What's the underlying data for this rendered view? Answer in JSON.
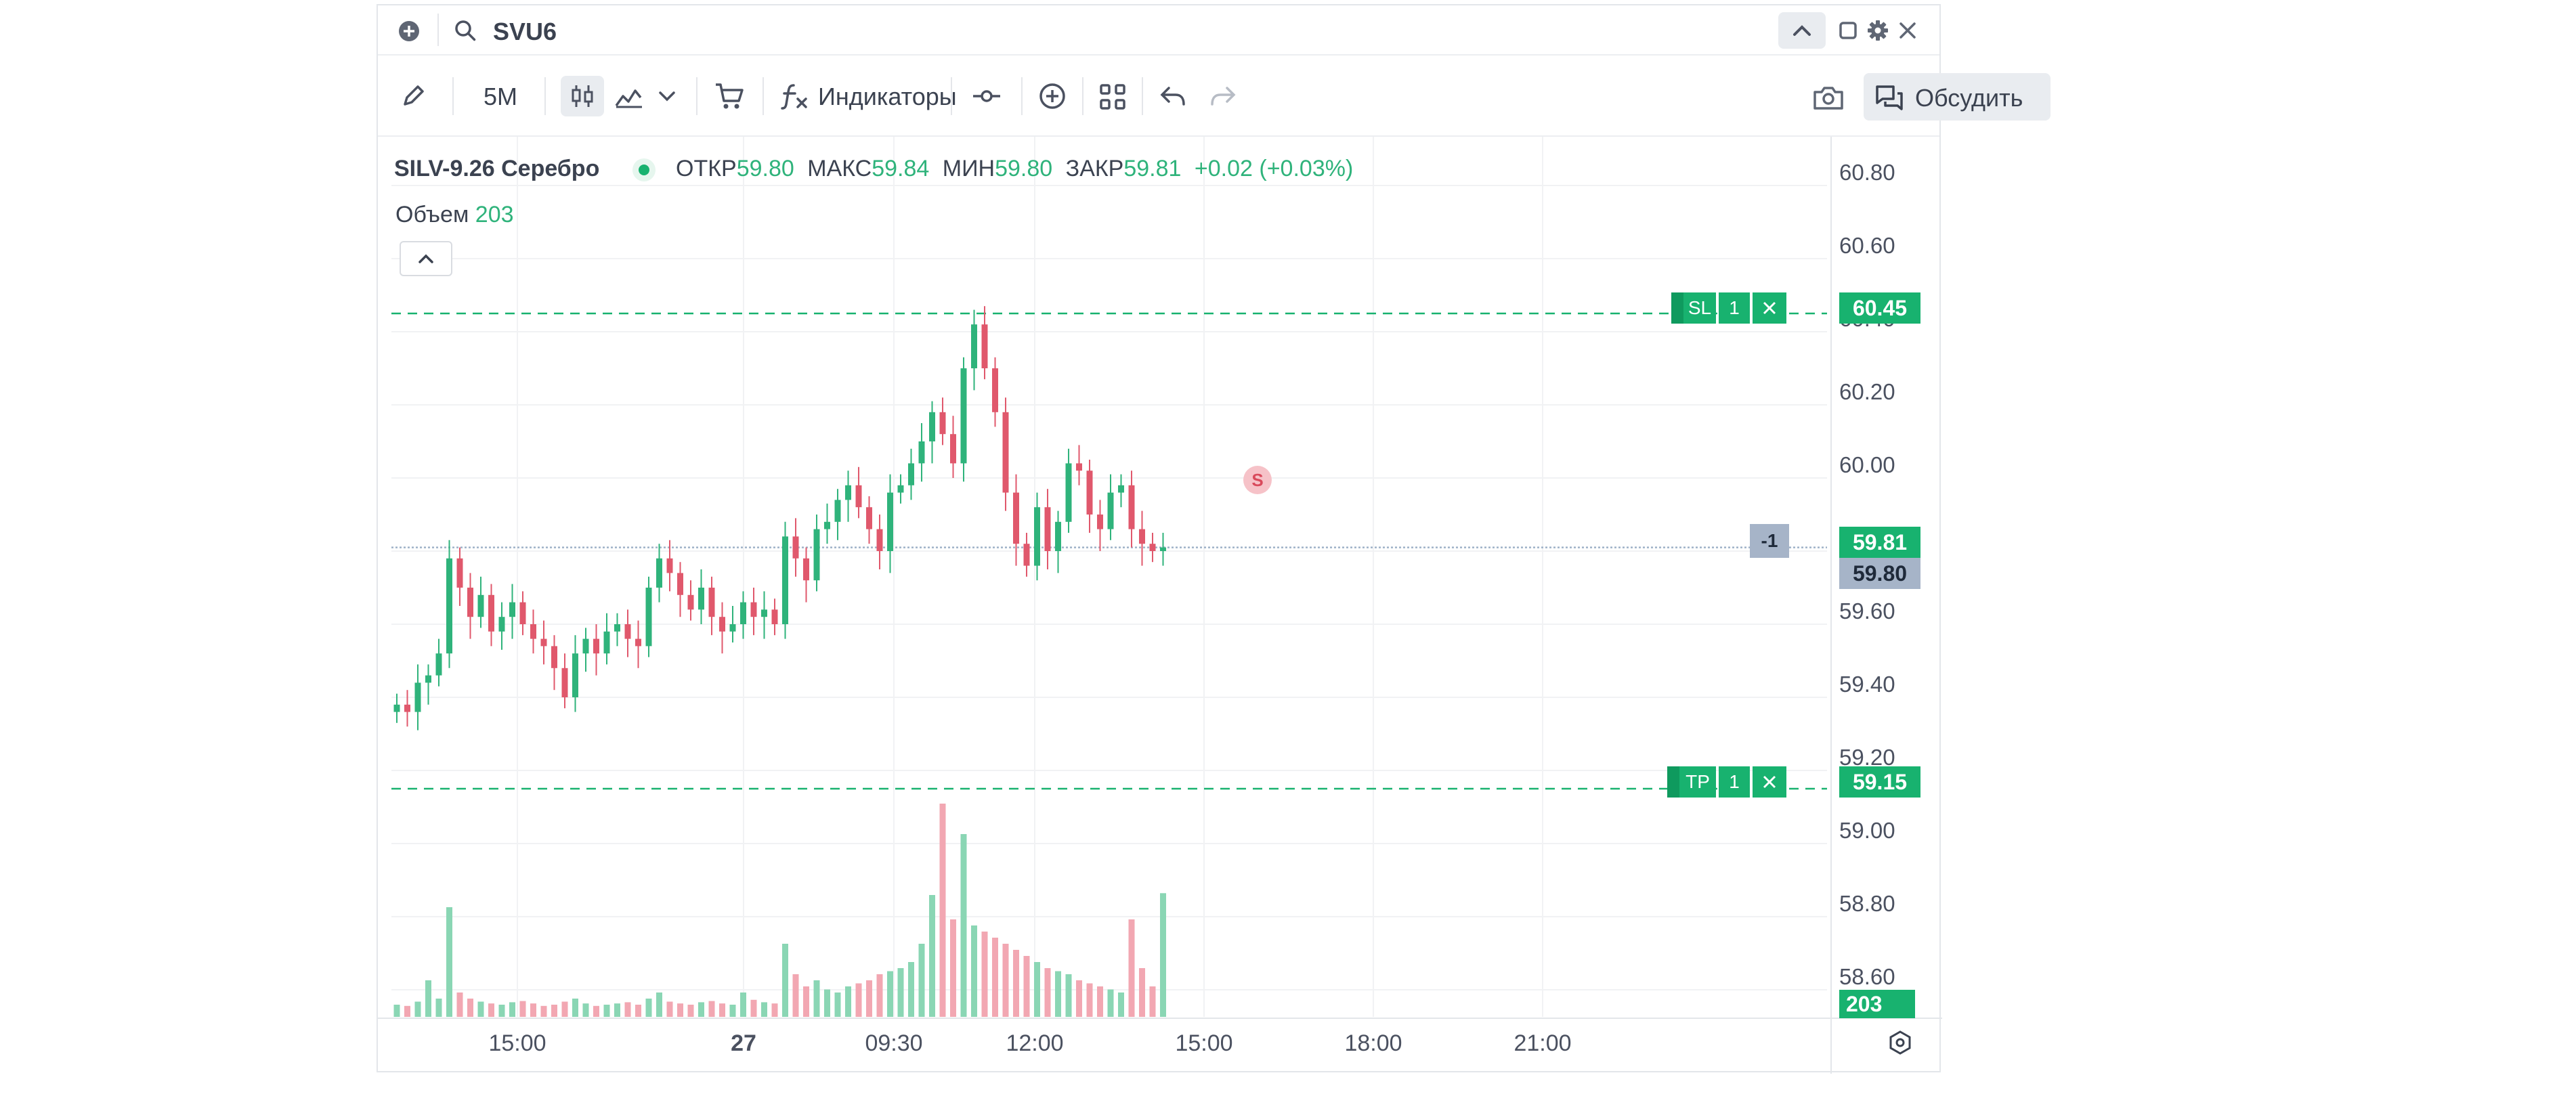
{
  "header": {
    "symbol": "SVU6"
  },
  "toolbar": {
    "timeframe": "5M",
    "indicators_label": "Индикаторы",
    "discuss_label": "Обсудить"
  },
  "legend": {
    "instrument": "SILV-9.26 Серебро",
    "open_label": "ОТКР",
    "open_value": "59.80",
    "high_label": "МАКС",
    "high_value": "59.84",
    "low_label": "МИН",
    "low_value": "59.80",
    "close_label": "ЗАКР",
    "close_value": "59.81",
    "change": "+0.02 (+0.03%)",
    "volume_label": "Объем",
    "volume_value": "203"
  },
  "price_axis": [
    "60.80",
    "60.60",
    "60.40",
    "60.20",
    "60.00",
    "59.60",
    "59.40",
    "59.20",
    "59.00",
    "58.80",
    "58.60"
  ],
  "time_axis": [
    "15:00",
    "27",
    "09:30",
    "12:00",
    "15:00",
    "18:00",
    "21:00"
  ],
  "orders": {
    "stop_loss": {
      "label": "SL",
      "qty": "1",
      "price": "60.45"
    },
    "take_profit": {
      "label": "TP",
      "qty": "1",
      "price": "59.15"
    },
    "position": {
      "qty": "-1"
    }
  },
  "current_price": "59.81",
  "last_price": "59.80",
  "volume_current": "203",
  "signal_marker": "S",
  "colors": {
    "up": "#2fb37b",
    "down": "#e0586c",
    "order_green": "#18b26f",
    "position_gray": "#a6b4c8"
  },
  "chart_data": {
    "type": "candlestick",
    "title": "SILV-9.26 Серебро",
    "interval": "5M",
    "ylim": [
      58.5,
      60.9
    ],
    "x_ticks": [
      "15:00",
      "27",
      "09:30",
      "12:00",
      "15:00",
      "18:00",
      "21:00"
    ],
    "y_ticks": [
      58.6,
      58.8,
      59.0,
      59.2,
      59.4,
      59.6,
      59.8,
      60.0,
      60.2,
      60.4,
      60.6,
      60.8
    ],
    "series": [
      {
        "name": "close",
        "values": [
          59.38,
          59.36,
          59.44,
          59.46,
          59.52,
          59.78,
          59.7,
          59.62,
          59.68,
          59.58,
          59.62,
          59.66,
          59.6,
          59.56,
          59.54,
          59.48,
          59.4,
          59.52,
          59.56,
          59.52,
          59.58,
          59.6,
          59.56,
          59.54,
          59.7,
          59.78,
          59.74,
          59.68,
          59.64,
          59.7,
          59.62,
          59.58,
          59.6,
          59.66,
          59.62,
          59.64,
          59.6,
          59.84,
          59.78,
          59.72,
          59.86,
          59.88,
          59.94,
          59.98,
          59.92,
          59.86,
          59.8,
          59.96,
          59.98,
          60.04,
          60.1,
          60.18,
          60.12,
          60.04,
          60.3,
          60.42,
          60.3,
          60.18,
          59.96,
          59.82,
          59.76,
          59.92,
          59.8,
          59.88,
          60.04,
          60.02,
          59.9,
          59.86,
          59.96,
          59.98,
          59.86,
          59.82,
          59.8,
          59.81
        ]
      },
      {
        "name": "Объем",
        "values": [
          20,
          18,
          25,
          60,
          30,
          180,
          40,
          30,
          25,
          22,
          20,
          24,
          26,
          22,
          18,
          20,
          25,
          30,
          22,
          18,
          20,
          22,
          24,
          20,
          30,
          40,
          25,
          22,
          20,
          24,
          26,
          22,
          20,
          40,
          28,
          24,
          22,
          120,
          70,
          50,
          60,
          45,
          40,
          50,
          55,
          60,
          70,
          75,
          80,
          90,
          120,
          200,
          350,
          160,
          300,
          150,
          140,
          130,
          120,
          110,
          100,
          90,
          80,
          75,
          70,
          60,
          55,
          50,
          45,
          40,
          160,
          80,
          50,
          203
        ]
      }
    ]
  }
}
